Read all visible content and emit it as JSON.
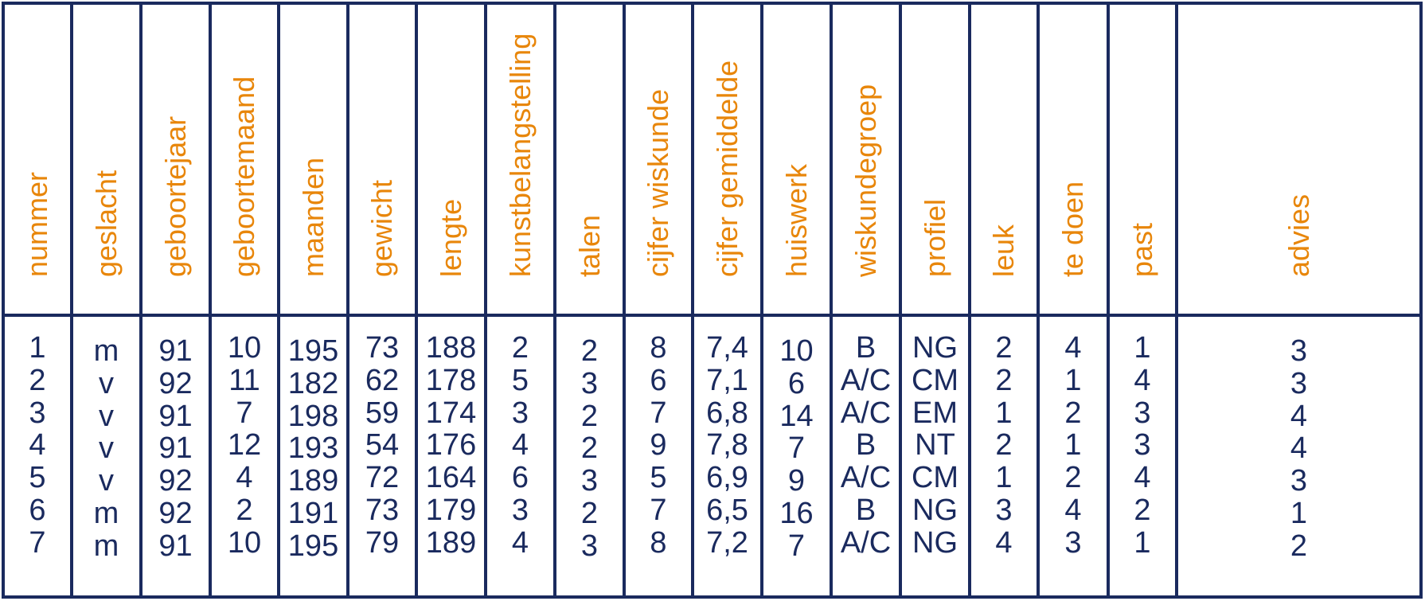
{
  "headers": [
    "nummer",
    "geslacht",
    "geboortejaar",
    "geboortemaand",
    "maanden",
    "gewicht",
    "lengte",
    "kunstbelangstelling",
    "talen",
    "cijfer wiskunde",
    "cijfer gemiddelde",
    "huiswerk",
    "wiskundegroep",
    "profiel",
    "leuk",
    "te doen",
    "past",
    "advies"
  ],
  "rows": [
    [
      "1",
      "m",
      "91",
      "10",
      "195",
      "73",
      "188",
      "2",
      "2",
      "8",
      "7,4",
      "10",
      "B",
      "NG",
      "2",
      "4",
      "1",
      "3"
    ],
    [
      "2",
      "v",
      "92",
      "11",
      "182",
      "62",
      "178",
      "5",
      "3",
      "6",
      "7,1",
      "6",
      "A/C",
      "CM",
      "2",
      "1",
      "4",
      "3"
    ],
    [
      "3",
      "v",
      "91",
      "7",
      "198",
      "59",
      "174",
      "3",
      "2",
      "7",
      "6,8",
      "14",
      "A/C",
      "EM",
      "1",
      "2",
      "3",
      "4"
    ],
    [
      "4",
      "v",
      "91",
      "12",
      "193",
      "54",
      "176",
      "4",
      "2",
      "9",
      "7,8",
      "7",
      "B",
      "NT",
      "2",
      "1",
      "3",
      "4"
    ],
    [
      "5",
      "v",
      "92",
      "4",
      "189",
      "72",
      "164",
      "6",
      "3",
      "5",
      "6,9",
      "9",
      "A/C",
      "CM",
      "1",
      "2",
      "4",
      "3"
    ],
    [
      "6",
      "m",
      "92",
      "2",
      "191",
      "73",
      "179",
      "3",
      "2",
      "7",
      "6,5",
      "16",
      "B",
      "NG",
      "3",
      "4",
      "2",
      "1"
    ],
    [
      "7",
      "m",
      "91",
      "10",
      "195",
      "79",
      "189",
      "4",
      "3",
      "8",
      "7,2",
      "7",
      "A/C",
      "NG",
      "4",
      "3",
      "1",
      "2"
    ]
  ]
}
